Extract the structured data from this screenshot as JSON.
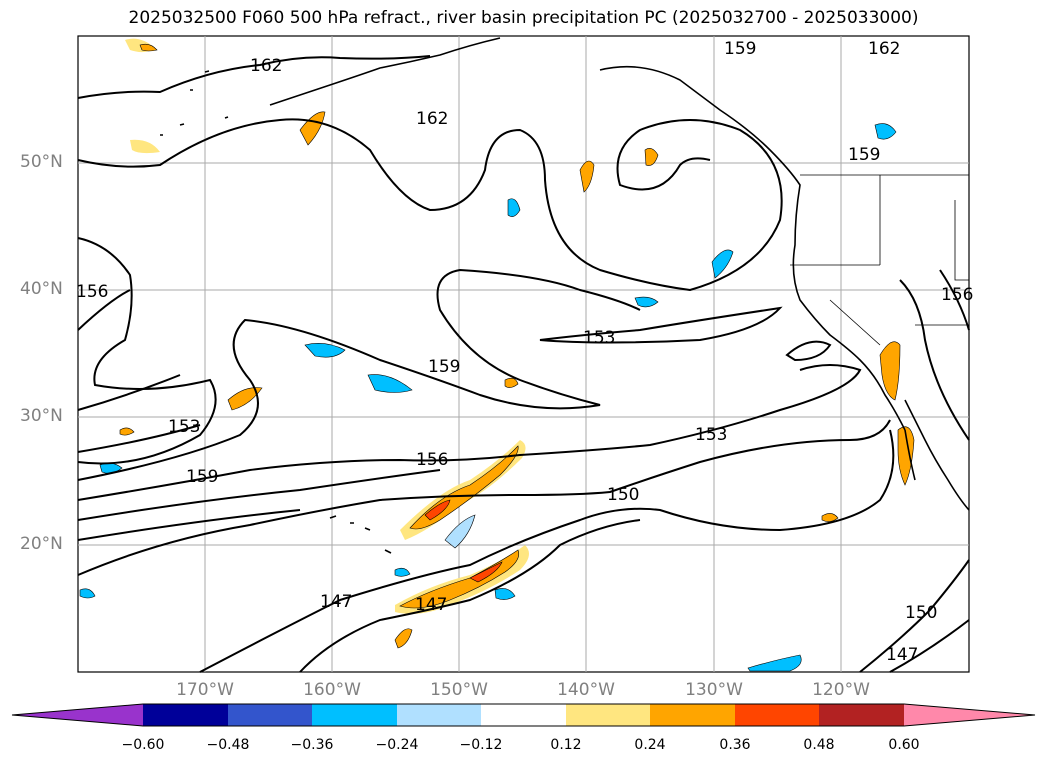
{
  "title": "2025032500 F060 500 hPa refract., river basin precipitation PC (2025032700 - 2025033000)",
  "lat_labels": [
    "50°N",
    "40°N",
    "30°N",
    "20°N"
  ],
  "lon_labels": [
    "170°W",
    "160°W",
    "150°W",
    "140°W",
    "130°W",
    "120°W"
  ],
  "contour_labels": [
    "162",
    "162",
    "159",
    "162",
    "159",
    "156",
    "153",
    "159",
    "153",
    "156",
    "153",
    "159",
    "150",
    "147",
    "147",
    "150",
    "147",
    "156"
  ],
  "colorbar": {
    "ticks": [
      "−0.60",
      "−0.48",
      "−0.36",
      "−0.24",
      "−0.12",
      "0.12",
      "0.24",
      "0.36",
      "0.48",
      "0.60"
    ],
    "colors": [
      "#9933cc",
      "#000099",
      "#3355cc",
      "#00bfff",
      "#b0e0ff",
      "#ffffff",
      "#ffe680",
      "#ffa500",
      "#ff4500",
      "#b22222",
      "#ff88aa"
    ]
  }
}
